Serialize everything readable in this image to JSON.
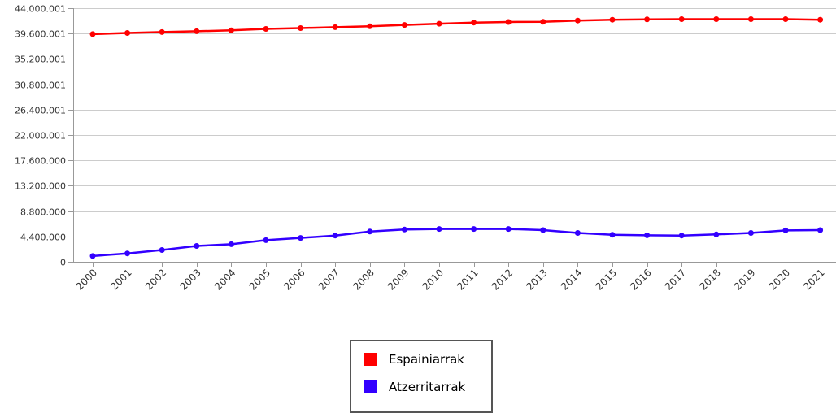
{
  "chart_data": {
    "type": "line",
    "title": "",
    "xlabel": "",
    "ylabel": "",
    "ylim": [
      0,
      44000001
    ],
    "yticks": [
      "0",
      "4.400.000",
      "8.800.000",
      "13.200.000",
      "17.600.000",
      "22.000.001",
      "26.400.001",
      "30.800.001",
      "35.200.001",
      "39.600.001",
      "44.000.001"
    ],
    "ytick_values": [
      0,
      4400000,
      8800000,
      13200000,
      17600000,
      22000001,
      26400001,
      30800001,
      35200001,
      39600001,
      44000001
    ],
    "categories": [
      "2000",
      "2001",
      "2002",
      "2003",
      "2004",
      "2005",
      "2006",
      "2007",
      "2008",
      "2009",
      "2010",
      "2011",
      "2012",
      "2013",
      "2014",
      "2015",
      "2016",
      "2017",
      "2018",
      "2019",
      "2020",
      "2021"
    ],
    "grid": true,
    "legend_position": "bottom",
    "series": [
      {
        "name": "Espainiarrak",
        "color": "#ff0000",
        "values": [
          39500000,
          39700000,
          39850000,
          40000000,
          40150000,
          40400000,
          40550000,
          40700000,
          40850000,
          41100000,
          41300000,
          41500000,
          41600000,
          41650000,
          41850000,
          42000000,
          42050000,
          42100000,
          42100000,
          42100000,
          42100000,
          42000000
        ]
      },
      {
        "name": "Atzerritarrak",
        "color": "#3300ff",
        "values": [
          1000000,
          1450000,
          2050000,
          2750000,
          3050000,
          3750000,
          4150000,
          4550000,
          5250000,
          5600000,
          5700000,
          5700000,
          5700000,
          5500000,
          5000000,
          4700000,
          4600000,
          4550000,
          4750000,
          5000000,
          5450000,
          5500000
        ]
      }
    ]
  }
}
